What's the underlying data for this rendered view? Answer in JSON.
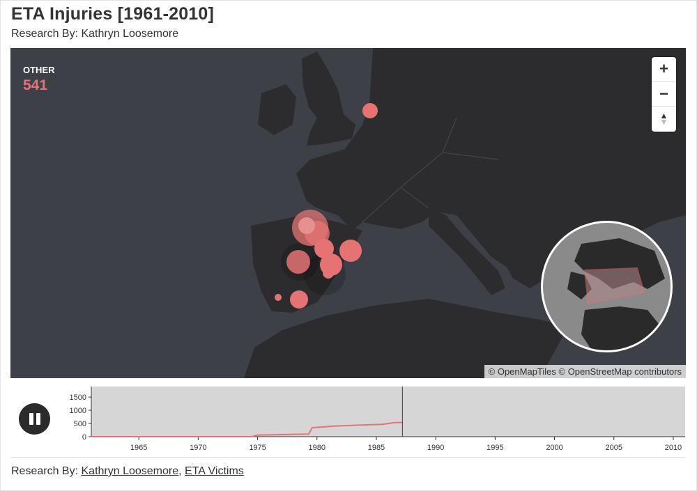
{
  "header": {
    "title": "ETA Injuries [1961-2010]",
    "subtitle": "Research By: Kathryn Loosemore"
  },
  "map": {
    "legend_category": "OTHER",
    "legend_count": "541",
    "attribution": "© OpenMapTiles © OpenStreetMap contributors",
    "zoom_in_icon": "plus-icon",
    "zoom_out_icon": "minus-icon",
    "compass_icon": "compass-icon",
    "colors": {
      "land": "#2c2c2e",
      "water": "#3e4048",
      "marker": "#e57373",
      "globe_land": "#2a2a2a",
      "globe_water": "#8a8a8a"
    }
  },
  "controls": {
    "pause_icon": "pause-icon"
  },
  "chart_data": {
    "type": "line",
    "x": [
      1961,
      1974.5,
      1975,
      1979.3,
      1979.6,
      1981.5,
      1983,
      1985.5,
      1986.5,
      1987.2
    ],
    "y": [
      0,
      0,
      60,
      100,
      340,
      400,
      430,
      470,
      530,
      541
    ],
    "current_year": 1987.2,
    "xlim": [
      1961,
      2011
    ],
    "ylim": [
      0,
      1900
    ],
    "y_ticks": [
      "0",
      "500",
      "1000",
      "1500"
    ],
    "x_ticks": [
      "1965",
      "1970",
      "1975",
      "1980",
      "1985",
      "1990",
      "1995",
      "2000",
      "2005",
      "2010"
    ],
    "line_color": "#e57373",
    "background": "#d6d6d6"
  },
  "footer": {
    "prefix": "Research By:",
    "link1": "Kathryn Loosemore",
    "separator": ",",
    "link2": "ETA Victims"
  }
}
